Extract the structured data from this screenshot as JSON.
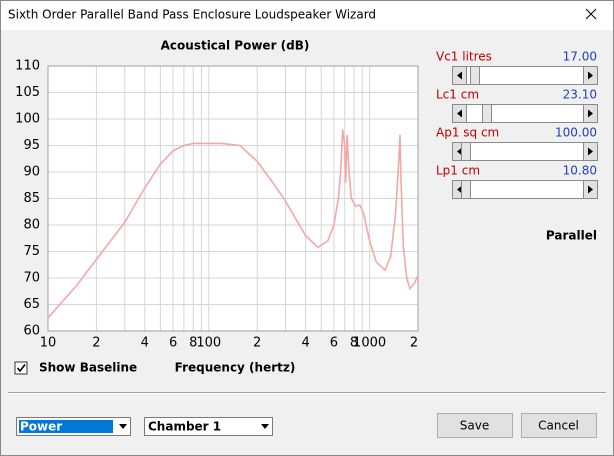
{
  "window": {
    "title": "Sixth Order Parallel Band Pass Enclosure Loudspeaker Wizard"
  },
  "chart_data": {
    "type": "line",
    "title": "Acoustical Power (dB)",
    "x_label": "Frequency (hertz)",
    "x_scale": "log",
    "x": [
      10,
      15,
      20,
      30,
      40,
      50,
      60,
      70,
      80,
      120,
      156,
      200,
      250,
      300,
      400,
      478,
      550,
      600,
      640,
      660,
      680,
      700,
      710,
      725,
      745,
      770,
      820,
      870,
      920,
      1000,
      1100,
      1247,
      1350,
      1450,
      1520,
      1545,
      1570,
      1620,
      1700,
      1783,
      1900,
      2000
    ],
    "series": [
      {
        "color": "#f4a7a7",
        "values": [
          62.5,
          68.5,
          73.5,
          80.5,
          87,
          91.5,
          94,
          95,
          95.4,
          95.4,
          95,
          92,
          88,
          84.5,
          78,
          75.8,
          77,
          80,
          85,
          90,
          98,
          95,
          88,
          97,
          90,
          85,
          83.5,
          83.8,
          82,
          77,
          73,
          71.5,
          74,
          82,
          92,
          97,
          88,
          76,
          70,
          68,
          69,
          70.5
        ]
      }
    ],
    "xlim": [
      10,
      2000
    ],
    "ylim": [
      60,
      110
    ],
    "xticks": [
      10,
      {
        "value": 20,
        "label": "2"
      },
      {
        "value": 40,
        "label": "4"
      },
      {
        "value": 60,
        "label": "6"
      },
      {
        "value": 80,
        "label": "8"
      },
      100,
      {
        "value": 200,
        "label": "2"
      },
      {
        "value": 400,
        "label": "4"
      },
      {
        "value": 600,
        "label": "6"
      },
      {
        "value": 800,
        "label": "8"
      },
      1000,
      {
        "value": 2000,
        "label": "2"
      }
    ],
    "xminor": [
      30,
      50,
      70,
      90,
      300,
      500,
      700,
      900
    ],
    "yticks": [
      60,
      65,
      70,
      75,
      80,
      85,
      90,
      95,
      100,
      105,
      110
    ],
    "grid": true
  },
  "controls": {
    "sliders": [
      {
        "label": "Vc1  litres",
        "value": "17.00"
      },
      {
        "label": "Lc1  cm",
        "value": "23.10"
      },
      {
        "label": "Ap1  sq cm",
        "value": "100.00"
      },
      {
        "label": "Lp1  cm",
        "value": "10.80"
      }
    ],
    "mode": "Parallel",
    "checkbox": {
      "label": "Show Baseline",
      "checked": true
    },
    "dropdowns": [
      "Power",
      "Chamber 1"
    ],
    "buttons": [
      "Save",
      "Cancel"
    ]
  }
}
